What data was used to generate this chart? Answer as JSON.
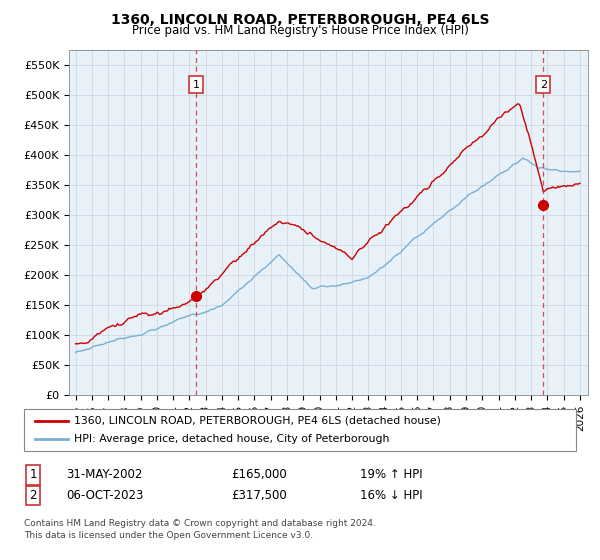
{
  "title": "1360, LINCOLN ROAD, PETERBOROUGH, PE4 6LS",
  "subtitle": "Price paid vs. HM Land Registry's House Price Index (HPI)",
  "ylabel_ticks": [
    "£0",
    "£50K",
    "£100K",
    "£150K",
    "£200K",
    "£250K",
    "£300K",
    "£350K",
    "£400K",
    "£450K",
    "£500K",
    "£550K"
  ],
  "ytick_vals": [
    0,
    50000,
    100000,
    150000,
    200000,
    250000,
    300000,
    350000,
    400000,
    450000,
    500000,
    550000
  ],
  "ylim": [
    0,
    575000
  ],
  "xlim_start": 1994.6,
  "xlim_end": 2026.5,
  "legend_line1": "1360, LINCOLN ROAD, PETERBOROUGH, PE4 6LS (detached house)",
  "legend_line2": "HPI: Average price, detached house, City of Peterborough",
  "line_color_red": "#cc0000",
  "line_color_blue": "#7ab0d4",
  "chart_bg": "#e8f0f8",
  "marker1_x": 2002.42,
  "marker1_y": 165000,
  "marker2_x": 2023.75,
  "marker2_y": 317500,
  "vline1_x": 2002.42,
  "vline2_x": 2023.75,
  "annotation1_label": "1",
  "annotation2_label": "2",
  "footnote3": "Contains HM Land Registry data © Crown copyright and database right 2024.",
  "footnote4": "This data is licensed under the Open Government Licence v3.0.",
  "background_color": "#ffffff",
  "grid_color": "#c8d4e0"
}
